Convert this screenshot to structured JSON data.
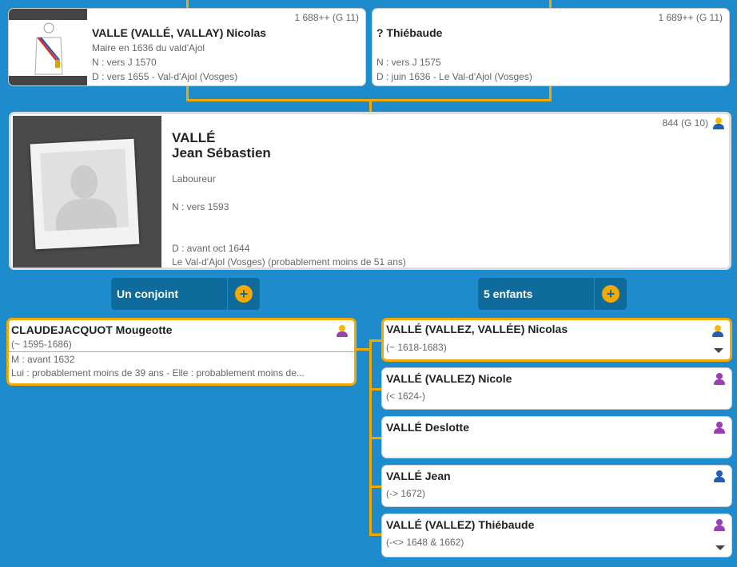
{
  "parents": [
    {
      "num": "1 688++ (G 11)",
      "name": "VALLE (VALLÉ, VALLAY) Nicolas",
      "note": "Maire en 1636 du vald'Ajol",
      "birth": "N : vers J 1570",
      "death": "D : vers 1655 - Val-d'Ajol (Vosges)"
    },
    {
      "num": "1 689++ (G 11)",
      "name": "? Thiébaude",
      "birth": "N : vers J 1575",
      "death": "D : juin 1636 - Le Val-d'Ajol (Vosges)"
    }
  ],
  "main": {
    "num": "844 (G 10)",
    "surname": "VALLÉ",
    "given": "Jean Sébastien",
    "occupation": "Laboureur",
    "birth": "N : vers 1593",
    "death": "D : avant oct 1644",
    "death_place": "Le Val-d'Ajol (Vosges) (probablement moins de 51 ans)"
  },
  "spouses_label": "Un conjoint",
  "children_label": "5 enfants",
  "spouse": {
    "name": "CLAUDEJACQUOT Mougeotte",
    "dates": "(~ 1595-1686)",
    "marriage": "M : avant 1632",
    "ages": "Lui : probablement moins de 39 ans - Elle : probablement moins de..."
  },
  "children": [
    {
      "name": "VALLÉ (VALLEZ, VALLÉE) Nicolas",
      "dates": "(~ 1618-1683)",
      "sex": "male",
      "head": "#f5b800"
    },
    {
      "name": "VALLÉ (VALLEZ) Nicole",
      "dates": "(< 1624-)",
      "sex": "female"
    },
    {
      "name": "VALLÉ Deslotte",
      "dates": "",
      "sex": "female"
    },
    {
      "name": "VALLÉ Jean",
      "dates": "(-> 1672)",
      "sex": "male"
    },
    {
      "name": "VALLÉ (VALLEZ) Thiébaude",
      "dates": "(-<> 1648 & 1662)",
      "sex": "female"
    }
  ],
  "colors": {
    "male": "#1f5fb5",
    "female": "#9b3fb5",
    "accent": "#f5a800",
    "background": "#1e8ccc"
  }
}
